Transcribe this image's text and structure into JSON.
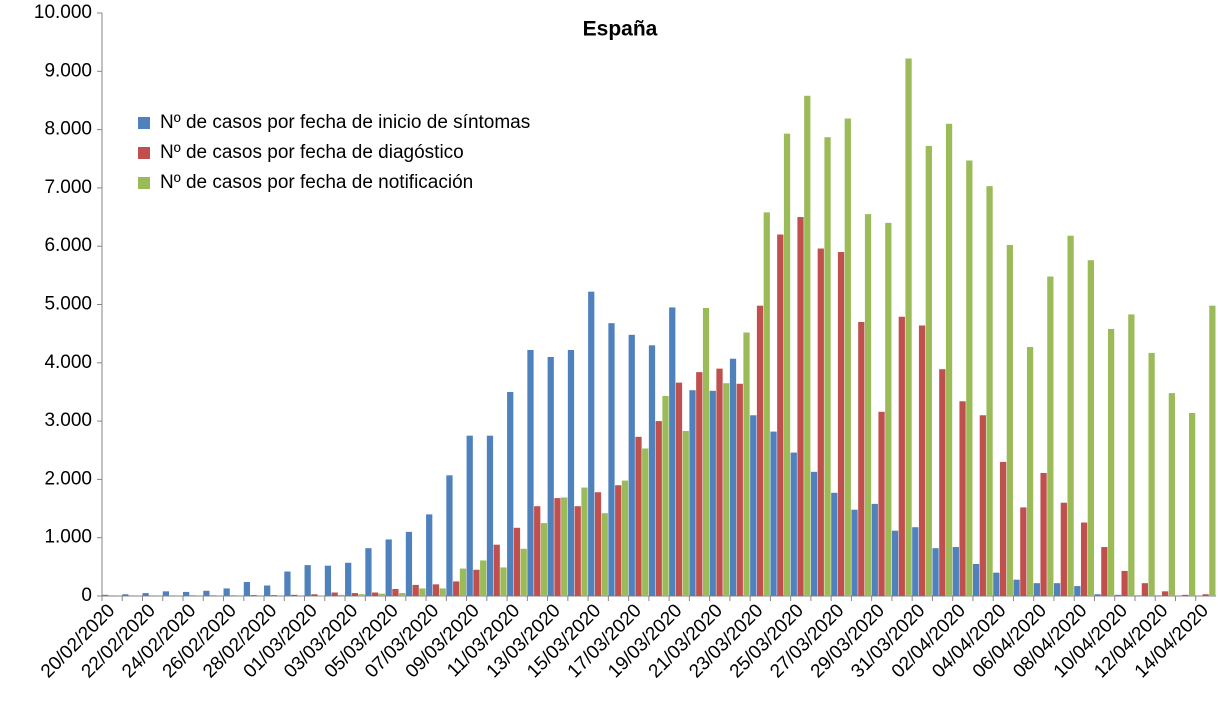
{
  "chart_data": {
    "type": "bar",
    "title": "España",
    "categories": [
      "20/02/2020",
      null,
      "22/02/2020",
      null,
      "24/02/2020",
      null,
      "26/02/2020",
      null,
      "28/02/2020",
      null,
      "01/03/2020",
      null,
      "03/03/2020",
      null,
      "05/03/2020",
      null,
      "07/03/2020",
      null,
      "09/03/2020",
      null,
      "11/03/2020",
      null,
      "13/03/2020",
      null,
      "15/03/2020",
      null,
      "17/03/2020",
      null,
      "19/03/2020",
      null,
      "21/03/2020",
      null,
      "23/03/2020",
      null,
      "25/03/2020",
      null,
      "27/03/2020",
      null,
      "29/03/2020",
      null,
      "31/03/2020",
      null,
      "02/04/2020",
      null,
      "04/04/2020",
      null,
      "06/04/2020",
      null,
      "08/04/2020",
      null,
      "10/04/2020",
      null,
      "12/04/2020",
      null,
      "14/04/2020"
    ],
    "series": [
      {
        "name": "Nº de casos por fecha de inicio de síntomas",
        "color": "#4f81bd",
        "values": [
          20,
          30,
          50,
          80,
          70,
          90,
          130,
          240,
          180,
          420,
          530,
          520,
          570,
          820,
          970,
          1100,
          1400,
          2070,
          2750,
          2750,
          3500,
          4220,
          4100,
          4220,
          5220,
          4680,
          4480,
          4300,
          4950,
          3530,
          3520,
          4070,
          3100,
          2820,
          2460,
          2130,
          1770,
          1480,
          1580,
          1120,
          1180,
          820,
          840,
          550,
          400,
          280,
          220,
          220,
          170,
          30,
          20,
          10,
          10,
          5,
          0
        ]
      },
      {
        "name": "Nº de casos por fecha de diagóstico",
        "color": "#c0504d",
        "values": [
          5,
          5,
          5,
          5,
          10,
          10,
          10,
          15,
          15,
          20,
          30,
          60,
          50,
          60,
          120,
          190,
          200,
          250,
          450,
          880,
          1170,
          1540,
          1680,
          1540,
          1780,
          1900,
          2730,
          3000,
          3660,
          3840,
          3900,
          3640,
          4980,
          6200,
          6500,
          5960,
          5900,
          4700,
          3160,
          4790,
          4640,
          3890,
          3340,
          3100,
          2300,
          1520,
          2110,
          1600,
          1260,
          840,
          430,
          220,
          80,
          20,
          30
        ]
      },
      {
        "name": "Nº de casos por fecha de notificación",
        "color": "#9bbb59",
        "values": [
          0,
          0,
          0,
          0,
          0,
          0,
          0,
          0,
          0,
          0,
          10,
          20,
          30,
          40,
          50,
          130,
          130,
          470,
          610,
          490,
          810,
          1250,
          1690,
          1860,
          1420,
          1980,
          2530,
          3430,
          2830,
          4940,
          3650,
          4520,
          6580,
          7930,
          8580,
          7870,
          8190,
          6550,
          6400,
          9220,
          7720,
          8100,
          7470,
          7030,
          6020,
          4270,
          5480,
          6180,
          5760,
          4580,
          4830,
          4170,
          3480,
          3140,
          4980
        ]
      }
    ],
    "ylim": [
      0,
      10000
    ],
    "yticks": [
      0,
      {
        "value": 1000,
        "label": "1.000"
      },
      {
        "value": 2000,
        "label": "2.000"
      },
      {
        "value": 3000,
        "label": "3.000"
      },
      {
        "value": 4000,
        "label": "4.000"
      },
      {
        "value": 5000,
        "label": "5.000"
      },
      {
        "value": 6000,
        "label": "6.000"
      },
      {
        "value": 7000,
        "label": "7.000"
      },
      {
        "value": 8000,
        "label": "8.000"
      },
      {
        "value": 9000,
        "label": "9.000"
      },
      {
        "value": 10000,
        "label": "10.000"
      }
    ],
    "grid": false,
    "legend": "upper-left"
  }
}
